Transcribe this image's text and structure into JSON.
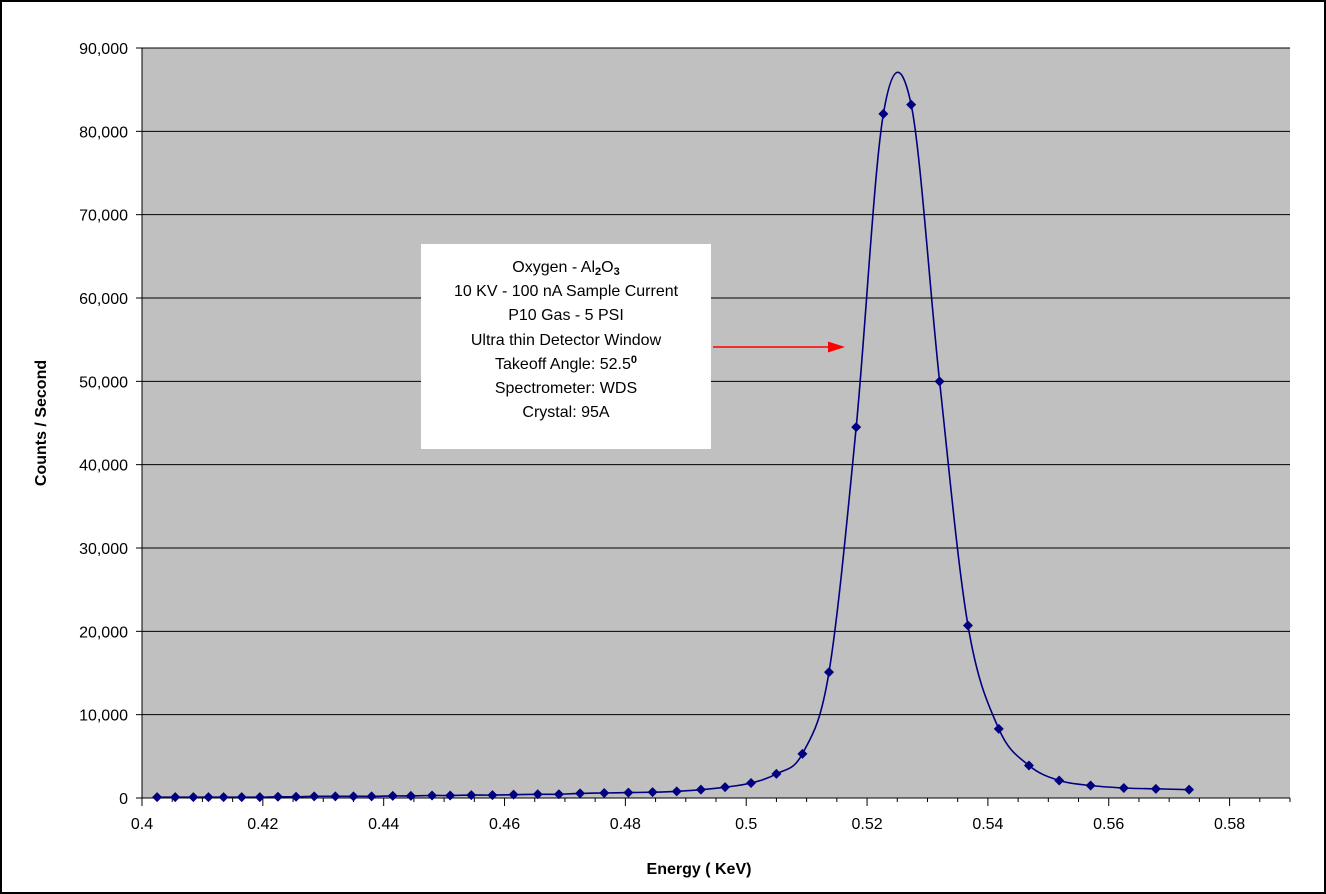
{
  "chart_data": {
    "type": "line",
    "xlabel": "Energy ( KeV)",
    "ylabel": "Counts / Second",
    "xlim": [
      0.4,
      0.59
    ],
    "ylim": [
      0,
      90000
    ],
    "xticks": [
      "0.4",
      "0.42",
      "0.44",
      "0.46",
      "0.48",
      "0.5",
      "0.52",
      "0.54",
      "0.56",
      "0.58"
    ],
    "yticks": [
      "0",
      "10,000",
      "20,000",
      "30,000",
      "40,000",
      "50,000",
      "60,000",
      "70,000",
      "80,000",
      "90,000"
    ],
    "grid": true,
    "legend": "none",
    "colors": {
      "plot_background": "#c0c0c0",
      "series": "#000080",
      "arrow": "#ff0000",
      "gridline": "#000000"
    },
    "series": [
      {
        "marker": "diamond",
        "x": [
          0.4025,
          0.4055,
          0.4085,
          0.411,
          0.4135,
          0.4165,
          0.4195,
          0.4225,
          0.4255,
          0.4285,
          0.432,
          0.435,
          0.438,
          0.4415,
          0.4445,
          0.448,
          0.451,
          0.4545,
          0.458,
          0.4615,
          0.4655,
          0.469,
          0.4725,
          0.4765,
          0.4805,
          0.4845,
          0.4885,
          0.4925,
          0.4965,
          0.5008,
          0.505,
          0.5093,
          0.5137,
          0.5182,
          0.5227,
          0.5273,
          0.532,
          0.5367,
          0.5418,
          0.5468,
          0.5518,
          0.557,
          0.5625,
          0.5678,
          0.5733
        ],
        "y": [
          100,
          100,
          100,
          100,
          100,
          100,
          100,
          150,
          150,
          200,
          200,
          200,
          200,
          250,
          250,
          300,
          300,
          350,
          350,
          400,
          450,
          450,
          550,
          600,
          650,
          700,
          800,
          1000,
          1300,
          1800,
          2900,
          5300,
          15100,
          44500,
          82100,
          83200,
          50000,
          20700,
          8300,
          3900,
          2100,
          1500,
          1200,
          1100,
          1000
        ]
      }
    ],
    "annotation": {
      "line1_prefix": "Oxygen - Al",
      "line1_sub1": "2",
      "line1_mid": "O",
      "line1_sub2": "3",
      "line2": "10 KV - 100 nA Sample Current",
      "line3": "P10 Gas - 5 PSI",
      "line4": "Ultra thin Detector Window",
      "line5_prefix": "Takeoff Angle: 52.5",
      "line5_sup": "0",
      "line6": "Spectrometer: WDS",
      "line7": "Crystal: 95A"
    }
  }
}
